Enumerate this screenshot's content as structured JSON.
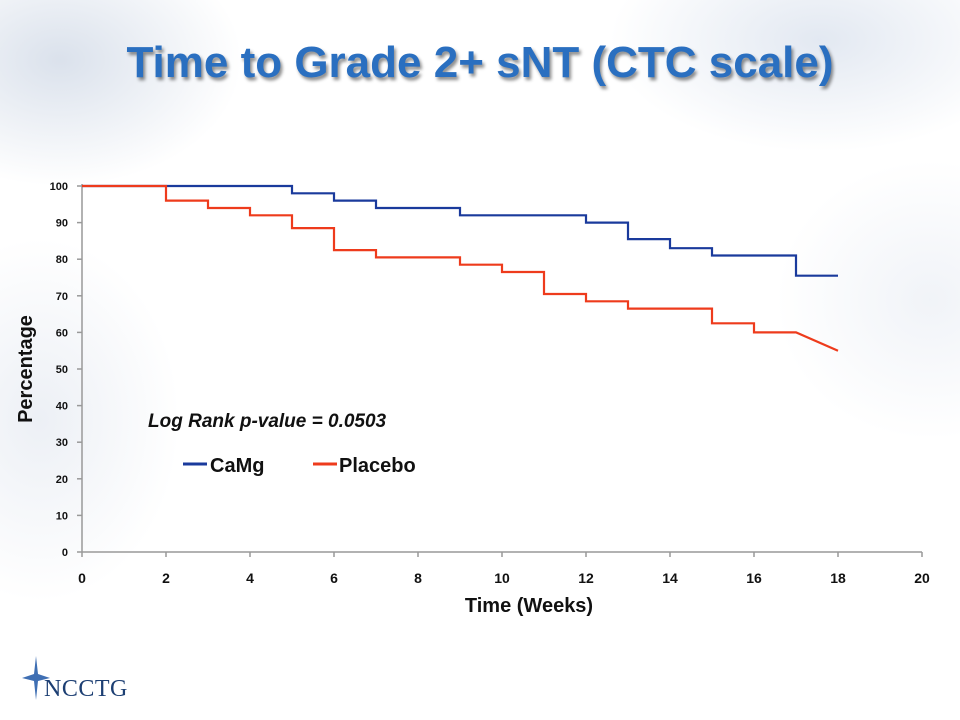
{
  "slide": {
    "title": "Time to Grade 2+ sNT (CTC scale)",
    "logo_text": "NCCTG"
  },
  "chart_data": {
    "type": "line",
    "step": true,
    "title": "Time to Grade 2+ sNT (CTC scale)",
    "xlabel": "Time (Weeks)",
    "ylabel": "Percentage",
    "xlim": [
      0,
      20
    ],
    "ylim": [
      0,
      100
    ],
    "xticks": [
      0,
      2,
      4,
      6,
      8,
      10,
      12,
      14,
      16,
      18,
      20
    ],
    "yticks": [
      0,
      10,
      20,
      30,
      40,
      50,
      60,
      70,
      80,
      90,
      100
    ],
    "grid": false,
    "annotation": "Log Rank p-value = 0.0503",
    "legend_position": "inside-left",
    "series": [
      {
        "name": "CaMg",
        "color": "#1a3a9c",
        "x": [
          0,
          5,
          5,
          6,
          6,
          7,
          7,
          9,
          9,
          12,
          12,
          13,
          13,
          14,
          14,
          15,
          15,
          17,
          17,
          18
        ],
        "y": [
          100,
          100,
          98,
          98,
          96,
          96,
          94,
          94,
          92,
          92,
          90,
          90,
          85.5,
          85.5,
          83,
          83,
          81,
          81,
          75.5,
          75.5
        ]
      },
      {
        "name": "Placebo",
        "color": "#ee3b1c",
        "x": [
          0,
          2,
          2,
          3,
          3,
          4,
          4,
          5,
          5,
          6,
          6,
          7,
          7,
          9,
          9,
          10,
          10,
          11,
          11,
          12,
          12,
          13,
          13,
          15,
          15,
          16,
          16,
          17,
          18
        ],
        "y": [
          100,
          100,
          96,
          96,
          94,
          94,
          92,
          92,
          88.5,
          88.5,
          82.5,
          82.5,
          80.5,
          80.5,
          78.5,
          78.5,
          76.5,
          76.5,
          70.5,
          70.5,
          68.5,
          68.5,
          66.5,
          66.5,
          62.5,
          62.5,
          60,
          60,
          55
        ]
      }
    ]
  }
}
